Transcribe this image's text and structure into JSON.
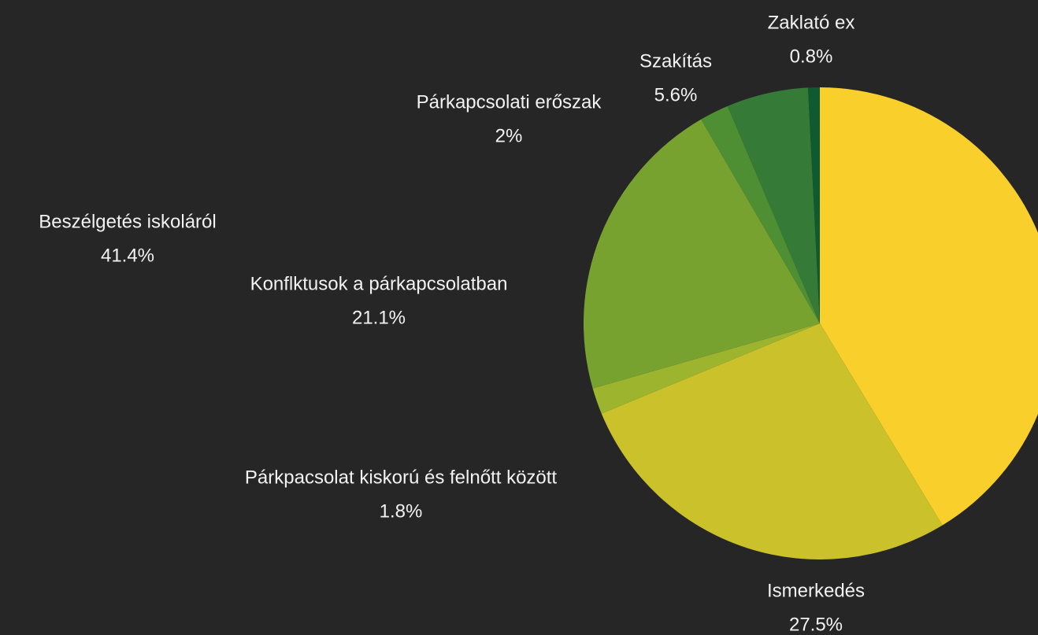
{
  "chart_data": {
    "type": "pie",
    "categories": [
      "Beszélgetés iskoláról",
      "Ismerkedés",
      "Párkpacsolat kiskorú és felnőtt között",
      "Konflktusok a párkapcsolatban",
      "Párkapcsolati erőszak",
      "Szakítás",
      "Zaklató ex"
    ],
    "values": [
      41.4,
      27.5,
      1.8,
      21.1,
      2,
      5.6,
      0.8
    ],
    "value_labels": [
      "41.4%",
      "27.5%",
      "1.8%",
      "21.1%",
      "2%",
      "5.6%",
      "0.8%"
    ],
    "colors": [
      "#f9cf2c",
      "#cbc22b",
      "#9db52e",
      "#78a22f",
      "#4f8f33",
      "#367a38",
      "#0f5a30"
    ]
  }
}
